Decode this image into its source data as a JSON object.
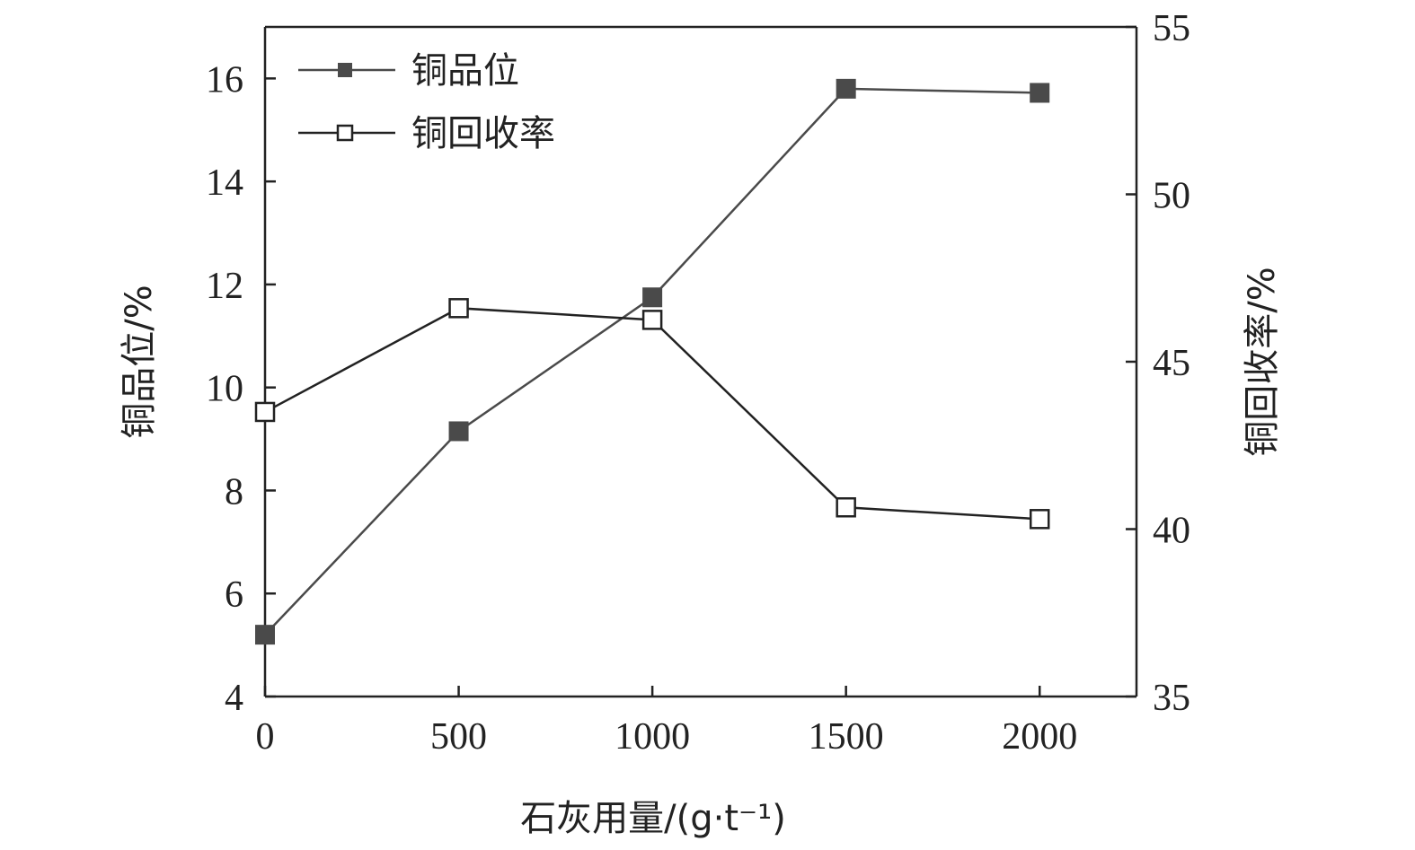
{
  "chart_data": {
    "type": "line",
    "xlabel": "石灰用量/(g·t⁻¹)",
    "ylabel_left": "铜品位/%",
    "ylabel_right": "铜回收率/%",
    "x": [
      0,
      500,
      1000,
      1500,
      2000
    ],
    "x_ticks": [
      0,
      500,
      1000,
      1500,
      2000
    ],
    "xlim": [
      0,
      2250
    ],
    "ylim_left": [
      4,
      17
    ],
    "ylim_right": [
      35,
      55
    ],
    "y_ticks_left": [
      4,
      6,
      8,
      10,
      12,
      14,
      16
    ],
    "y_ticks_right": [
      35,
      40,
      45,
      50,
      55
    ],
    "legend_position": "top-left",
    "grid": false,
    "series": [
      {
        "name": "铜品位",
        "axis": "left",
        "marker": "filled-square",
        "color": "#4a4a4a",
        "values": [
          5.2,
          9.15,
          11.75,
          15.8,
          15.72
        ]
      },
      {
        "name": "铜回收率",
        "axis": "right",
        "marker": "open-square",
        "color": "#222222",
        "values": [
          43.5,
          46.6,
          46.25,
          40.65,
          40.3
        ]
      }
    ]
  }
}
